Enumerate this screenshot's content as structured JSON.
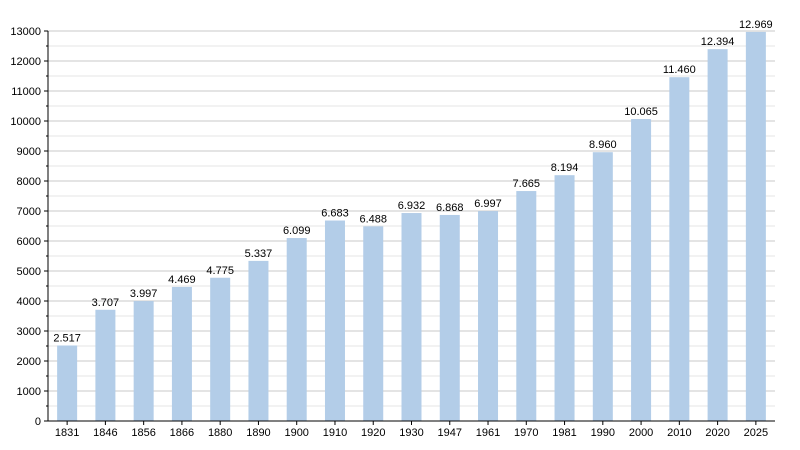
{
  "chart_data": {
    "type": "bar",
    "title": "",
    "xlabel": "",
    "ylabel": "",
    "categories": [
      "1831",
      "1846",
      "1856",
      "1866",
      "1880",
      "1890",
      "1900",
      "1910",
      "1920",
      "1930",
      "1947",
      "1961",
      "1970",
      "1981",
      "1990",
      "2000",
      "2010",
      "2020",
      "2025"
    ],
    "values": [
      2517,
      3707,
      3997,
      4469,
      4775,
      5337,
      6099,
      6683,
      6488,
      6932,
      6868,
      6997,
      7665,
      8194,
      8960,
      10065,
      11460,
      12394,
      12969
    ],
    "data_labels": [
      "2.517",
      "3.707",
      "3.997",
      "4.469",
      "4.775",
      "5.337",
      "6.099",
      "6.683",
      "6.488",
      "6.932",
      "6.868",
      "6.997",
      "7.665",
      "8.194",
      "8.960",
      "10.065",
      "11.460",
      "12.394",
      "12.969"
    ],
    "ylim": [
      0,
      13000
    ],
    "yticks": [
      0,
      1000,
      2000,
      3000,
      4000,
      5000,
      6000,
      7000,
      8000,
      9000,
      10000,
      11000,
      12000,
      13000
    ],
    "grid": true,
    "legend": "none",
    "bar_color": "#b3cde8",
    "grid_color": "#c8c8c8"
  }
}
